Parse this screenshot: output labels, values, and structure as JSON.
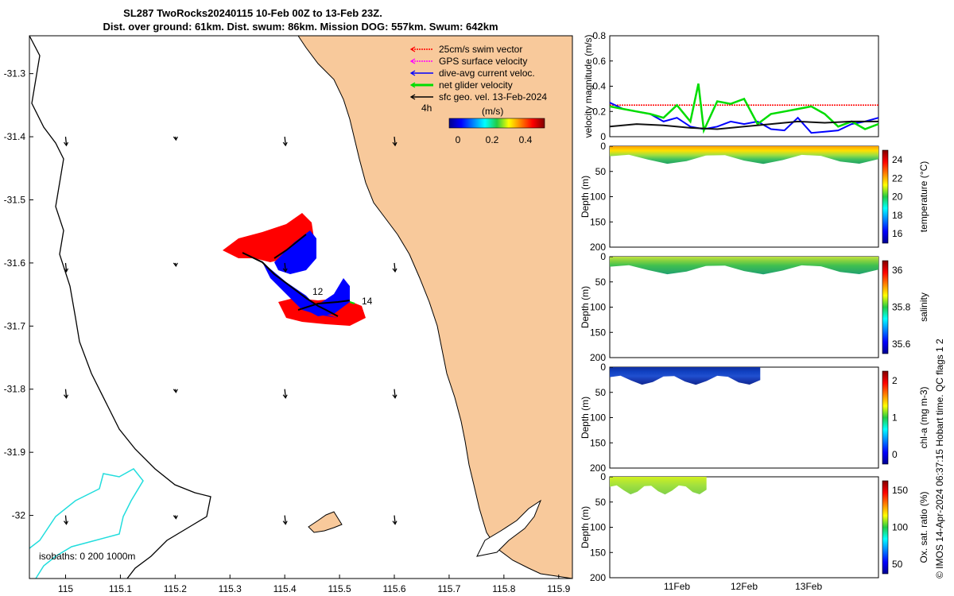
{
  "header": {
    "title_line1": "SL287 TwoRocks20240115 10-Feb 00Z to 13-Feb 23Z.",
    "title_line2": "Dist. over ground: 61km. Dist. swum: 86km. Mission DOG: 557km. Swum: 642km"
  },
  "map": {
    "x_ticks": [
      "115",
      "115.1",
      "115.2",
      "115.3",
      "115.4",
      "115.5",
      "115.6",
      "115.7",
      "115.8",
      "115.9"
    ],
    "y_ticks": [
      "-31.3",
      "-31.4",
      "-31.5",
      "-31.6",
      "-31.7",
      "-31.8",
      "-31.9",
      "-32"
    ],
    "legend": [
      {
        "label": "25cm/s swim vector",
        "color": "#ff0000"
      },
      {
        "label": "GPS surface velocity",
        "color": "#ff00ff"
      },
      {
        "label": "dive-avg current veloc.",
        "color": "#0000ff"
      },
      {
        "label": "net glider velocity",
        "color": "#00dd00"
      },
      {
        "label": "sfc geo. vel. 13-Feb-2024",
        "color": "#000000"
      }
    ],
    "legend_time": "4h",
    "colorbar_unit": "(m/s)",
    "colorbar_ticks": [
      "0",
      "0.2",
      "0.4"
    ],
    "isobaths_label": "isobaths: 0   200  1000m",
    "day_marks": [
      "12",
      "14"
    ],
    "land_color": "#f8c99b"
  },
  "chart_data": [
    {
      "type": "line",
      "title": "",
      "ylabel": "velocity magnitude (m/s)",
      "ylim": [
        0,
        0.8
      ],
      "y_ticks": [
        "0",
        "0.2",
        "0.4",
        "0.6",
        "0.8"
      ],
      "series": [
        {
          "color": "#ff0000",
          "x": [
            0,
            0.25,
            0.5,
            0.75,
            1.0
          ],
          "y": [
            0.25,
            0.25,
            0.25,
            0.25,
            0.25
          ]
        },
        {
          "color": "#0000ff",
          "x": [
            0,
            0.05,
            0.1,
            0.15,
            0.2,
            0.25,
            0.3,
            0.35,
            0.4,
            0.45,
            0.5,
            0.55,
            0.6,
            0.65,
            0.7,
            0.75,
            0.8,
            0.85,
            0.9,
            0.95,
            1.0
          ],
          "y": [
            0.27,
            0.22,
            0.2,
            0.18,
            0.12,
            0.15,
            0.08,
            0.06,
            0.08,
            0.12,
            0.1,
            0.12,
            0.06,
            0.05,
            0.15,
            0.03,
            0.04,
            0.05,
            0.1,
            0.12,
            0.15
          ]
        },
        {
          "color": "#00dd00",
          "x": [
            0,
            0.05,
            0.1,
            0.15,
            0.2,
            0.25,
            0.3,
            0.33,
            0.35,
            0.4,
            0.45,
            0.5,
            0.55,
            0.6,
            0.65,
            0.7,
            0.75,
            0.8,
            0.85,
            0.9,
            0.95,
            1.0
          ],
          "y": [
            0.24,
            0.22,
            0.2,
            0.18,
            0.15,
            0.25,
            0.12,
            0.42,
            0.05,
            0.28,
            0.26,
            0.3,
            0.1,
            0.18,
            0.2,
            0.22,
            0.24,
            0.18,
            0.08,
            0.12,
            0.06,
            0.1
          ]
        },
        {
          "color": "#111111",
          "x": [
            0,
            0.1,
            0.2,
            0.3,
            0.4,
            0.5,
            0.6,
            0.7,
            0.8,
            0.9,
            1.0
          ],
          "y": [
            0.08,
            0.1,
            0.09,
            0.07,
            0.06,
            0.08,
            0.1,
            0.12,
            0.11,
            0.12,
            0.12
          ]
        }
      ]
    },
    {
      "type": "heatmap",
      "ylabel": "Depth (m)",
      "ylim": [
        0,
        200
      ],
      "y_ticks": [
        "0",
        "50",
        "100",
        "150",
        "200"
      ],
      "colorbar_label": "temperature (°C)",
      "colorbar_ticks": [
        "24",
        "22",
        "20",
        "18",
        "16"
      ],
      "x_extent": [
        0,
        1.0
      ],
      "max_depth_m": 35
    },
    {
      "type": "heatmap",
      "ylabel": "Depth (m)",
      "ylim": [
        0,
        200
      ],
      "y_ticks": [
        "0",
        "50",
        "100",
        "150",
        "200"
      ],
      "colorbar_label": "salinity",
      "colorbar_ticks": [
        "36",
        "35.8",
        "35.6"
      ],
      "x_extent": [
        0,
        1.0
      ],
      "max_depth_m": 35
    },
    {
      "type": "heatmap",
      "ylabel": "Depth (m)",
      "ylim": [
        0,
        200
      ],
      "y_ticks": [
        "0",
        "50",
        "100",
        "150",
        "200"
      ],
      "colorbar_label": "chl-a (mg m-3)",
      "colorbar_ticks": [
        "2",
        "1",
        "0"
      ],
      "x_extent": [
        0,
        0.56
      ],
      "max_depth_m": 35
    },
    {
      "type": "heatmap",
      "ylabel": "Depth (m)",
      "ylim": [
        0,
        200
      ],
      "y_ticks": [
        "0",
        "50",
        "100",
        "150",
        "200"
      ],
      "colorbar_label": "Ox. sat. ratio (%)",
      "colorbar_ticks": [
        "150",
        "100",
        "50"
      ],
      "x_extent": [
        0,
        0.36
      ],
      "max_depth_m": 35
    }
  ],
  "x_time_ticks": [
    "11Feb",
    "12Feb",
    "13Feb"
  ],
  "footer_vertical": "© IMOS 14-Apr-2024 06:37:15 Hobart time. QC flags 1  2"
}
